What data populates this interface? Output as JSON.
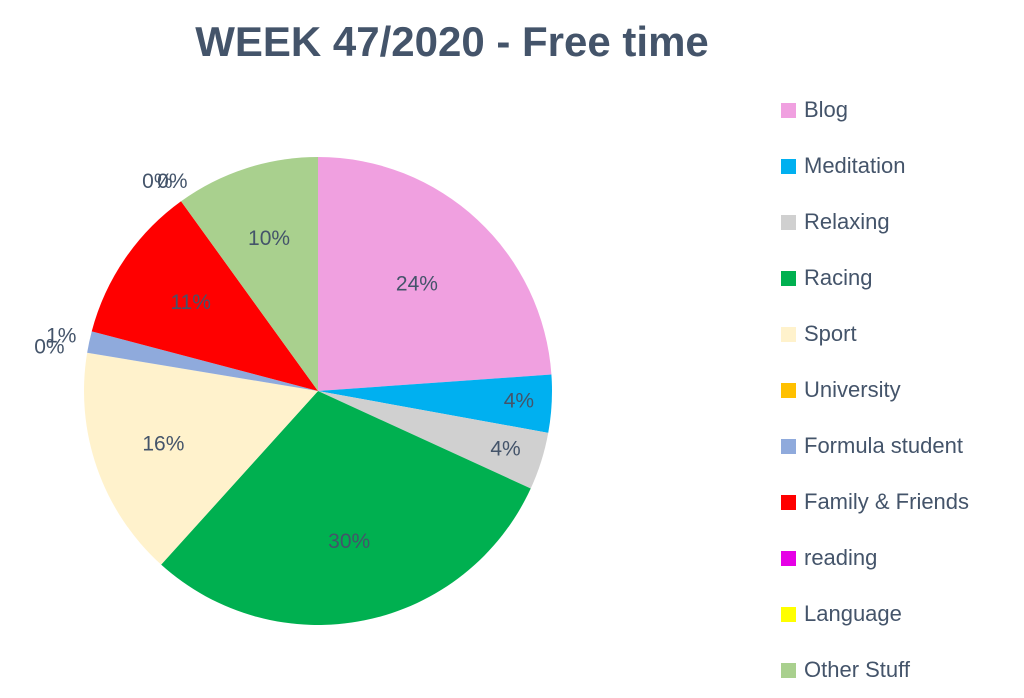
{
  "chart_data": {
    "type": "pie",
    "title": "WEEK 47/2020 - Free time",
    "legend_position": "right",
    "slices": [
      {
        "name": "Blog",
        "value": 24,
        "label": "24%",
        "color": "#f0a0e0"
      },
      {
        "name": "Meditation",
        "value": 4,
        "label": "4%",
        "color": "#00b0f0"
      },
      {
        "name": "Relaxing",
        "value": 4,
        "label": "4%",
        "color": "#d0d0d0"
      },
      {
        "name": "Racing",
        "value": 30,
        "label": "30%",
        "color": "#00b050"
      },
      {
        "name": "Sport",
        "value": 16,
        "label": "16%",
        "color": "#fff2cc"
      },
      {
        "name": "University",
        "value": 0,
        "label": "0%",
        "color": "#ffc000"
      },
      {
        "name": "Formula student",
        "value": 1.5,
        "label": "1%",
        "color": "#8faadc"
      },
      {
        "name": "Family & Friends",
        "value": 11,
        "label": "11%",
        "color": "#ff0000"
      },
      {
        "name": "reading",
        "value": 0,
        "label": "0%",
        "color": "#e600e6"
      },
      {
        "name": "Language",
        "value": 0,
        "label": "0%",
        "color": "#ffff00"
      },
      {
        "name": "Other Stuff",
        "value": 10,
        "label": "10%",
        "color": "#a9d08e"
      }
    ]
  }
}
